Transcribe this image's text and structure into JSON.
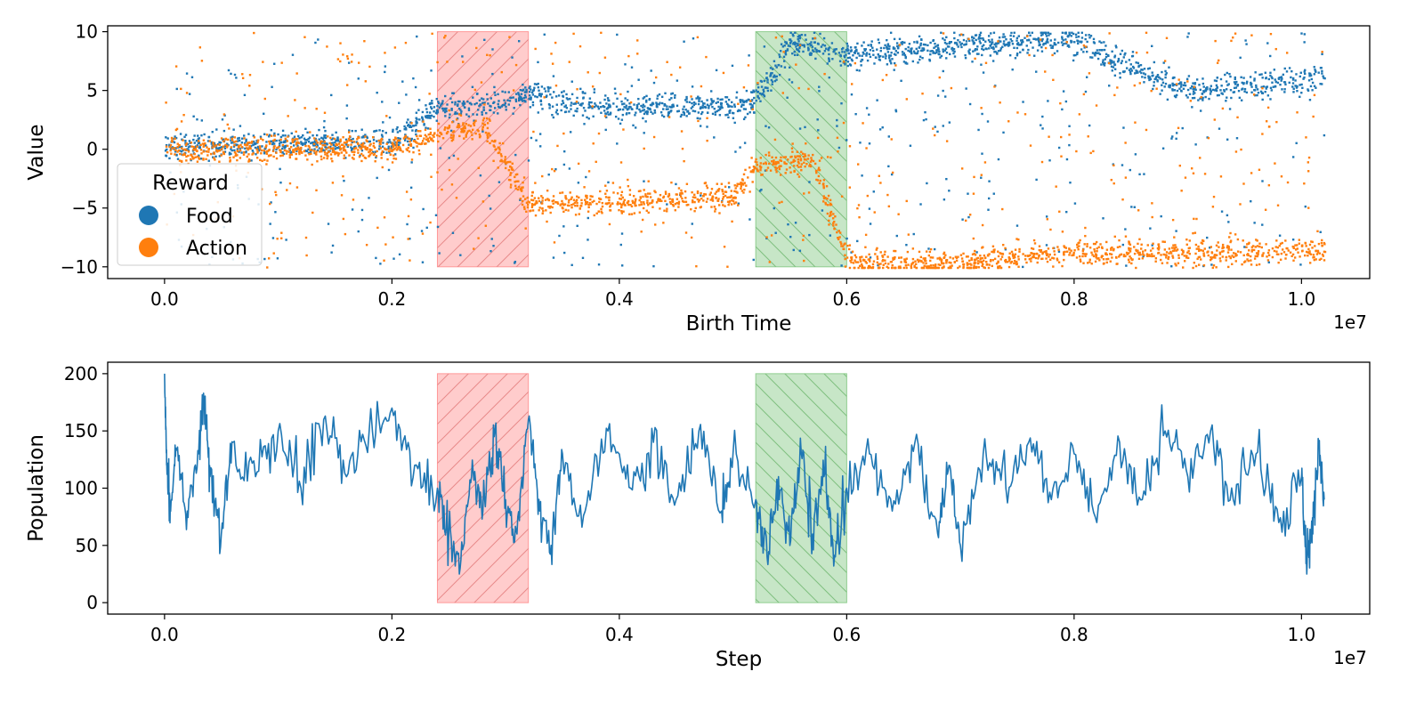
{
  "chart_data": [
    {
      "type": "scatter",
      "xlabel": "Birth Time",
      "ylabel": "Value",
      "x_offset_label": "1e7",
      "xlim": [
        -0.05,
        1.06
      ],
      "ylim": [
        -11,
        10.5
      ],
      "x_ticks": [
        0.0,
        0.2,
        0.4,
        0.6,
        0.8,
        1.0
      ],
      "x_tick_labels": [
        "0.0",
        "0.2",
        "0.4",
        "0.6",
        "0.8",
        "1.0"
      ],
      "y_ticks": [
        10,
        5,
        0,
        -5,
        -10
      ],
      "y_tick_labels": [
        "10",
        "5",
        "0",
        "−5",
        "−10"
      ],
      "grid": false,
      "legend": {
        "title": "Reward",
        "placement": "lower-left",
        "entries": [
          {
            "label": "Food",
            "color": "#1f77b4"
          },
          {
            "label": "Action",
            "color": "#ff7f0e"
          }
        ]
      },
      "shaded_regions": [
        {
          "x_start": 0.24,
          "x_end": 0.32,
          "color": "#ff9999",
          "hatch": "forward"
        },
        {
          "x_start": 0.52,
          "x_end": 0.6,
          "color": "#8fce8f",
          "hatch": "backward"
        }
      ],
      "series": [
        {
          "name": "Food",
          "color": "#1f77b4",
          "trend": [
            [
              0.0,
              0.3
            ],
            [
              0.1,
              0.6
            ],
            [
              0.2,
              0.8
            ],
            [
              0.24,
              3.6
            ],
            [
              0.28,
              3.8
            ],
            [
              0.32,
              4.6
            ],
            [
              0.4,
              3.6
            ],
            [
              0.5,
              3.8
            ],
            [
              0.52,
              4.2
            ],
            [
              0.55,
              9.2
            ],
            [
              0.6,
              8.2
            ],
            [
              0.7,
              8.8
            ],
            [
              0.8,
              9.4
            ],
            [
              0.85,
              7.0
            ],
            [
              0.9,
              5.0
            ],
            [
              1.0,
              6.0
            ],
            [
              1.02,
              6.4
            ]
          ]
        },
        {
          "name": "Action",
          "color": "#ff7f0e",
          "trend": [
            [
              0.0,
              0.0
            ],
            [
              0.1,
              0.1
            ],
            [
              0.2,
              0.2
            ],
            [
              0.24,
              1.6
            ],
            [
              0.28,
              2.0
            ],
            [
              0.32,
              -4.6
            ],
            [
              0.4,
              -4.4
            ],
            [
              0.5,
              -3.8
            ],
            [
              0.52,
              -1.2
            ],
            [
              0.57,
              -1.0
            ],
            [
              0.6,
              -9.5
            ],
            [
              0.7,
              -9.6
            ],
            [
              0.8,
              -8.6
            ],
            [
              0.9,
              -8.8
            ],
            [
              1.0,
              -8.5
            ],
            [
              1.02,
              -8.4
            ]
          ]
        }
      ]
    },
    {
      "type": "line",
      "xlabel": "Step",
      "ylabel": "Population",
      "x_offset_label": "1e7",
      "xlim": [
        -0.05,
        1.06
      ],
      "ylim": [
        -10,
        210
      ],
      "x_ticks": [
        0.0,
        0.2,
        0.4,
        0.6,
        0.8,
        1.0
      ],
      "x_tick_labels": [
        "0.0",
        "0.2",
        "0.4",
        "0.6",
        "0.8",
        "1.0"
      ],
      "y_ticks": [
        200,
        150,
        100,
        50,
        0
      ],
      "y_tick_labels": [
        "200",
        "150",
        "100",
        "50",
        "0"
      ],
      "grid": false,
      "shaded_regions": [
        {
          "x_start": 0.24,
          "x_end": 0.32,
          "y_start": 0,
          "y_end": 200,
          "color": "#ff9999",
          "hatch": "forward"
        },
        {
          "x_start": 0.52,
          "x_end": 0.6,
          "y_start": 0,
          "y_end": 200,
          "color": "#8fce8f",
          "hatch": "backward"
        }
      ],
      "series": [
        {
          "color": "#1f77b4",
          "points": [
            [
              0.0,
              200
            ],
            [
              0.002,
              120
            ],
            [
              0.005,
              85
            ],
            [
              0.01,
              135
            ],
            [
              0.02,
              80
            ],
            [
              0.03,
              130
            ],
            [
              0.035,
              180
            ],
            [
              0.04,
              110
            ],
            [
              0.05,
              60
            ],
            [
              0.06,
              140
            ],
            [
              0.08,
              110
            ],
            [
              0.1,
              150
            ],
            [
              0.12,
              100
            ],
            [
              0.14,
              160
            ],
            [
              0.16,
              110
            ],
            [
              0.18,
              150
            ],
            [
              0.2,
              170
            ],
            [
              0.22,
              120
            ],
            [
              0.24,
              100
            ],
            [
              0.25,
              60
            ],
            [
              0.26,
              30
            ],
            [
              0.27,
              110
            ],
            [
              0.28,
              80
            ],
            [
              0.29,
              145
            ],
            [
              0.3,
              90
            ],
            [
              0.31,
              60
            ],
            [
              0.32,
              160
            ],
            [
              0.33,
              80
            ],
            [
              0.34,
              50
            ],
            [
              0.35,
              130
            ],
            [
              0.37,
              80
            ],
            [
              0.39,
              150
            ],
            [
              0.41,
              100
            ],
            [
              0.43,
              140
            ],
            [
              0.45,
              90
            ],
            [
              0.47,
              150
            ],
            [
              0.49,
              80
            ],
            [
              0.5,
              130
            ],
            [
              0.52,
              90
            ],
            [
              0.53,
              40
            ],
            [
              0.54,
              110
            ],
            [
              0.55,
              50
            ],
            [
              0.56,
              130
            ],
            [
              0.57,
              60
            ],
            [
              0.58,
              110
            ],
            [
              0.59,
              40
            ],
            [
              0.6,
              100
            ],
            [
              0.62,
              130
            ],
            [
              0.64,
              80
            ],
            [
              0.66,
              140
            ],
            [
              0.68,
              60
            ],
            [
              0.69,
              120
            ],
            [
              0.7,
              50
            ],
            [
              0.72,
              130
            ],
            [
              0.74,
              100
            ],
            [
              0.76,
              140
            ],
            [
              0.78,
              90
            ],
            [
              0.8,
              130
            ],
            [
              0.82,
              70
            ],
            [
              0.84,
              140
            ],
            [
              0.86,
              90
            ],
            [
              0.88,
              150
            ],
            [
              0.9,
              110
            ],
            [
              0.92,
              150
            ],
            [
              0.94,
              90
            ],
            [
              0.96,
              130
            ],
            [
              0.98,
              70
            ],
            [
              1.0,
              110
            ],
            [
              1.005,
              35
            ],
            [
              1.01,
              60
            ],
            [
              1.015,
              140
            ],
            [
              1.02,
              90
            ]
          ]
        }
      ]
    }
  ]
}
